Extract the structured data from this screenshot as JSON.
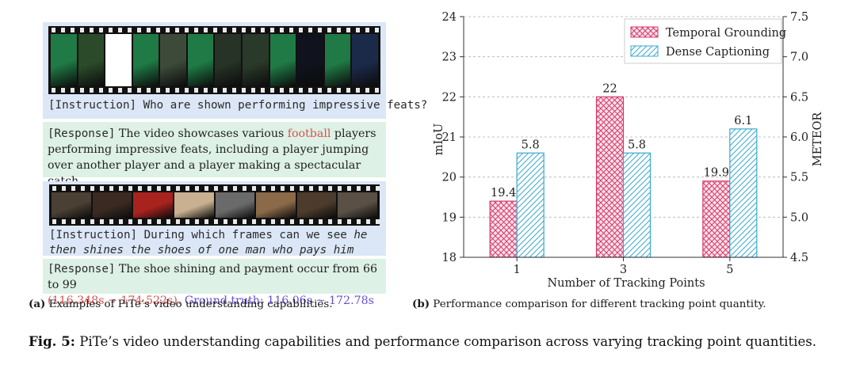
{
  "panel_a": {
    "example1": {
      "instruction": "[Instruction] Who are shown performing impressive feats?",
      "response_tag": "[Response]",
      "response_before": " The video showcases various ",
      "response_highlight": "football",
      "response_after": " players performing impressive feats, including a player jumping over another player and a player making a spectacular catch.",
      "frame_colors": [
        "#1f7a45",
        "#2b4a2a",
        "#ffffff",
        "#1f7a45",
        "#3d4a3a",
        "#1f7a45",
        "#263326",
        "#2a3a2a",
        "#1f7a45",
        "#10131d",
        "#1f7a45",
        "#1c2a4a"
      ]
    },
    "example2": {
      "instruction_tag": "[Instruction]",
      "instruction_text": " During which frames can we see ",
      "instruction_italic": "he then shines the shoes of one man who pays him and shakes his hand.",
      "response_tag": "[Response]",
      "response_text": " The shoe shining and payment occur from 66 to 99",
      "response_time": "(116.348s ~ 174.522s).",
      "ground_truth": " Ground truth: 116.06s ~ 172.78s",
      "frame_colors": [
        "#4a4034",
        "#3a2a22",
        "#a8231e",
        "#c8b090",
        "#6a6a6a",
        "#8a6a48",
        "#4d3c2c",
        "#5a5046"
      ]
    },
    "caption_label": "(a)",
    "caption_text": " Examples of PiTe’s video understanding capabilities."
  },
  "panel_b": {
    "caption_label": "(b)",
    "caption_text": " Performance comparison for different tracking point quantity."
  },
  "chart_data": {
    "type": "bar",
    "categories": [
      "1",
      "3",
      "5"
    ],
    "xlabel": "Number of Tracking Points",
    "ylabel": "mIoU",
    "ylabel_right": "METEOR",
    "ylim": [
      18,
      24
    ],
    "yticks": [
      "18",
      "19",
      "20",
      "21",
      "22",
      "23",
      "24"
    ],
    "ylim_right": [
      4.5,
      7.5
    ],
    "yticks_right": [
      "4.5",
      "5.0",
      "5.5",
      "6.0",
      "6.5",
      "7.0",
      "7.5"
    ],
    "legend_position": "top-right",
    "series": [
      {
        "name": "Temporal Grounding",
        "axis": "left",
        "values": [
          19.4,
          22,
          19.9
        ],
        "labels": [
          "19.4",
          "22",
          "19.9"
        ],
        "color": "#d6396a"
      },
      {
        "name": "Dense Captioning",
        "axis": "right",
        "values": [
          5.8,
          5.8,
          6.1
        ],
        "labels": [
          "5.8",
          "5.8",
          "6.1"
        ],
        "color": "#3aa9cf"
      }
    ]
  },
  "figure_caption": {
    "label": "Fig. 5:",
    "text": " PiTe’s video understanding capabilities and performance comparison across varying tracking point quantities."
  }
}
